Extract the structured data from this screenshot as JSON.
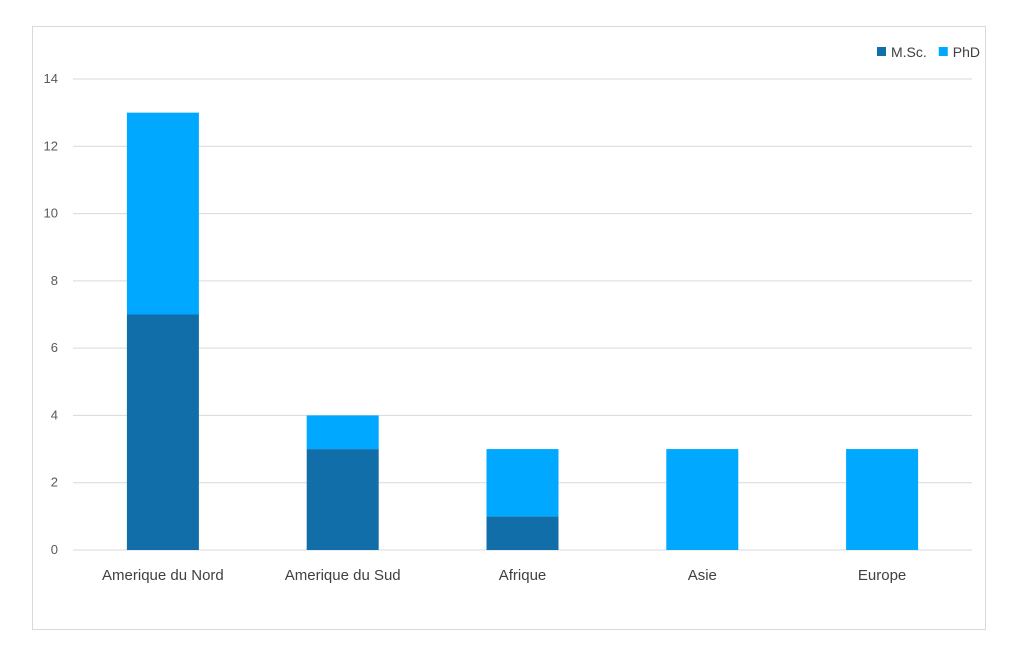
{
  "chart_data": {
    "type": "bar",
    "stacked": true,
    "categories": [
      "Amerique du Nord",
      "Amerique du Sud",
      "Afrique",
      "Asie",
      "Europe"
    ],
    "series": [
      {
        "name": "M.Sc.",
        "values": [
          7,
          3,
          1,
          0,
          0
        ],
        "color": "#126EA8"
      },
      {
        "name": "PhD",
        "values": [
          6,
          1,
          2,
          3,
          3
        ],
        "color": "#00A9FF"
      }
    ],
    "title": "",
    "xlabel": "",
    "ylabel": "",
    "ylim": [
      0,
      14
    ],
    "yticks": [
      0,
      2,
      4,
      6,
      8,
      10,
      12,
      14
    ],
    "grid": true,
    "legend_position": "top-right",
    "gridline_color": "#d9d9d9"
  }
}
